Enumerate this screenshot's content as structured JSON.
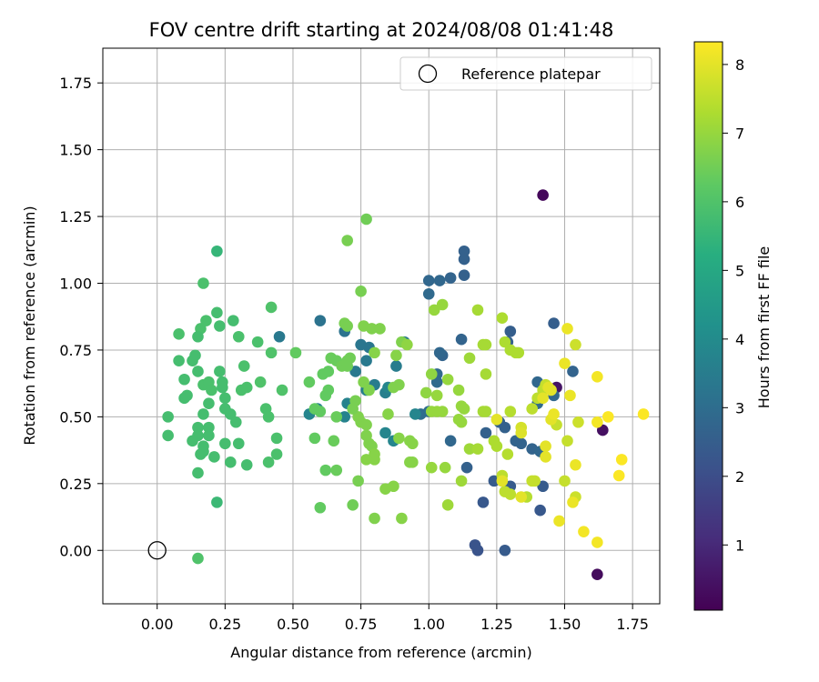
{
  "chart_data": {
    "type": "scatter",
    "title": "FOV centre drift starting at 2024/08/08 01:41:48",
    "xlabel": "Angular distance from reference (arcmin)",
    "ylabel": "Rotation from reference (arcmin)",
    "xlim": [
      -0.2,
      1.85
    ],
    "ylim": [
      -0.2,
      1.88
    ],
    "xticks": [
      0.0,
      0.25,
      0.5,
      0.75,
      1.0,
      1.25,
      1.5,
      1.75
    ],
    "yticks": [
      0.0,
      0.25,
      0.5,
      0.75,
      1.0,
      1.25,
      1.5,
      1.75
    ],
    "xtick_labels": [
      "0.00",
      "0.25",
      "0.50",
      "0.75",
      "1.00",
      "1.25",
      "1.50",
      "1.75"
    ],
    "ytick_labels": [
      "0.00",
      "0.25",
      "0.50",
      "0.75",
      "1.00",
      "1.25",
      "1.50",
      "1.75"
    ],
    "grid": true,
    "legend": {
      "position": "top-right",
      "entries": [
        "Reference platepar"
      ]
    },
    "reference_point": {
      "x": 0.0,
      "y": 0.0,
      "label": "Reference platepar"
    },
    "colorbar": {
      "label": "Hours from first FF file",
      "colormap": "viridis",
      "range": [
        0.05,
        8.33
      ],
      "ticks": [
        1,
        2,
        3,
        4,
        5,
        6,
        7,
        8
      ],
      "tick_labels": [
        "1",
        "2",
        "3",
        "4",
        "5",
        "6",
        "7",
        "8"
      ]
    },
    "points": [
      [
        1.42,
        1.33,
        0.2
      ],
      [
        1.62,
        -0.09,
        0.3
      ],
      [
        1.64,
        0.45,
        0.4
      ],
      [
        1.47,
        0.61,
        0.5
      ],
      [
        1.13,
        1.12,
        2.6
      ],
      [
        1.13,
        1.09,
        2.6
      ],
      [
        1.13,
        1.03,
        2.6
      ],
      [
        1.08,
        1.02,
        2.7
      ],
      [
        1.0,
        1.01,
        2.8
      ],
      [
        1.04,
        1.01,
        2.8
      ],
      [
        1.0,
        0.96,
        2.9
      ],
      [
        1.46,
        0.85,
        2.5
      ],
      [
        1.3,
        0.82,
        2.5
      ],
      [
        1.29,
        0.78,
        2.6
      ],
      [
        1.12,
        0.79,
        2.7
      ],
      [
        1.05,
        0.73,
        2.7
      ],
      [
        1.04,
        0.74,
        2.8
      ],
      [
        1.03,
        0.66,
        2.9
      ],
      [
        1.03,
        0.63,
        2.9
      ],
      [
        1.53,
        0.67,
        2.7
      ],
      [
        1.46,
        0.58,
        2.8
      ],
      [
        1.4,
        0.63,
        2.8
      ],
      [
        1.4,
        0.55,
        2.9
      ],
      [
        1.26,
        0.48,
        2.6
      ],
      [
        1.28,
        0.46,
        2.6
      ],
      [
        1.32,
        0.41,
        2.7
      ],
      [
        1.34,
        0.4,
        2.7
      ],
      [
        1.38,
        0.38,
        2.7
      ],
      [
        1.41,
        0.37,
        2.8
      ],
      [
        1.08,
        0.41,
        2.8
      ],
      [
        1.21,
        0.44,
        2.6
      ],
      [
        0.97,
        0.51,
        3.0
      ],
      [
        1.0,
        0.52,
        3.0
      ],
      [
        1.14,
        0.31,
        2.6
      ],
      [
        1.24,
        0.26,
        2.4
      ],
      [
        1.27,
        0.26,
        2.4
      ],
      [
        1.42,
        0.24,
        2.4
      ],
      [
        1.3,
        0.24,
        2.4
      ],
      [
        1.41,
        0.15,
        2.3
      ],
      [
        1.2,
        0.18,
        2.3
      ],
      [
        1.17,
        0.02,
        2.2
      ],
      [
        1.18,
        0.0,
        2.2
      ],
      [
        1.28,
        0.0,
        2.4
      ],
      [
        0.6,
        0.86,
        3.2
      ],
      [
        0.69,
        0.82,
        3.2
      ],
      [
        0.75,
        0.77,
        3.3
      ],
      [
        0.78,
        0.76,
        3.3
      ],
      [
        0.91,
        0.78,
        3.3
      ],
      [
        0.45,
        0.8,
        3.4
      ],
      [
        0.77,
        0.71,
        3.4
      ],
      [
        0.73,
        0.67,
        3.4
      ],
      [
        0.88,
        0.69,
        3.5
      ],
      [
        0.8,
        0.62,
        3.5
      ],
      [
        0.77,
        0.6,
        3.6
      ],
      [
        0.84,
        0.59,
        3.6
      ],
      [
        0.59,
        0.53,
        3.7
      ],
      [
        0.56,
        0.51,
        3.8
      ],
      [
        0.69,
        0.5,
        3.7
      ],
      [
        0.7,
        0.55,
        3.7
      ],
      [
        0.87,
        0.41,
        3.8
      ],
      [
        0.84,
        0.44,
        3.8
      ],
      [
        0.95,
        0.51,
        3.8
      ],
      [
        0.85,
        0.61,
        3.8
      ],
      [
        0.08,
        0.81,
        5.9
      ],
      [
        0.16,
        0.83,
        5.9
      ],
      [
        0.18,
        0.86,
        5.9
      ],
      [
        0.22,
        0.89,
        5.8
      ],
      [
        0.23,
        0.84,
        5.8
      ],
      [
        0.28,
        0.86,
        5.8
      ],
      [
        0.22,
        1.12,
        5.5
      ],
      [
        0.17,
        1.0,
        5.9
      ],
      [
        0.42,
        0.91,
        6.0
      ],
      [
        0.08,
        0.71,
        5.8
      ],
      [
        0.13,
        0.71,
        5.8
      ],
      [
        0.14,
        0.73,
        5.8
      ],
      [
        0.15,
        0.8,
        5.8
      ],
      [
        0.15,
        0.67,
        5.8
      ],
      [
        0.23,
        0.67,
        5.8
      ],
      [
        0.24,
        0.63,
        5.8
      ],
      [
        0.1,
        0.64,
        5.8
      ],
      [
        0.1,
        0.57,
        5.8
      ],
      [
        0.11,
        0.58,
        5.8
      ],
      [
        0.17,
        0.62,
        5.9
      ],
      [
        0.19,
        0.63,
        5.9
      ],
      [
        0.2,
        0.6,
        5.9
      ],
      [
        0.24,
        0.61,
        5.8
      ],
      [
        0.3,
        0.8,
        5.9
      ],
      [
        0.37,
        0.78,
        5.9
      ],
      [
        0.42,
        0.74,
        6.0
      ],
      [
        0.31,
        0.6,
        5.9
      ],
      [
        0.33,
        0.61,
        5.9
      ],
      [
        0.38,
        0.63,
        6.0
      ],
      [
        0.46,
        0.6,
        6.0
      ],
      [
        0.25,
        0.57,
        5.8
      ],
      [
        0.25,
        0.53,
        5.8
      ],
      [
        0.27,
        0.51,
        5.8
      ],
      [
        0.29,
        0.48,
        5.8
      ],
      [
        0.19,
        0.55,
        5.8
      ],
      [
        0.17,
        0.51,
        5.8
      ],
      [
        0.15,
        0.46,
        5.8
      ],
      [
        0.15,
        0.43,
        5.8
      ],
      [
        0.19,
        0.46,
        5.8
      ],
      [
        0.19,
        0.43,
        5.8
      ],
      [
        0.04,
        0.5,
        5.8
      ],
      [
        0.04,
        0.43,
        5.8
      ],
      [
        0.13,
        0.41,
        5.8
      ],
      [
        0.17,
        0.39,
        5.8
      ],
      [
        0.16,
        0.36,
        5.8
      ],
      [
        0.17,
        0.37,
        5.8
      ],
      [
        0.21,
        0.35,
        5.8
      ],
      [
        0.25,
        0.4,
        5.8
      ],
      [
        0.3,
        0.4,
        5.8
      ],
      [
        0.27,
        0.33,
        5.8
      ],
      [
        0.33,
        0.32,
        5.8
      ],
      [
        0.41,
        0.33,
        5.9
      ],
      [
        0.44,
        0.36,
        5.9
      ],
      [
        0.44,
        0.42,
        5.9
      ],
      [
        0.4,
        0.53,
        5.9
      ],
      [
        0.41,
        0.5,
        5.9
      ],
      [
        0.15,
        0.29,
        5.8
      ],
      [
        0.22,
        0.18,
        5.6
      ],
      [
        0.15,
        -0.03,
        6.0
      ],
      [
        0.32,
        0.69,
        5.9
      ],
      [
        0.51,
        0.74,
        6.3
      ],
      [
        0.56,
        0.63,
        6.3
      ],
      [
        0.61,
        0.66,
        6.3
      ],
      [
        0.63,
        0.67,
        6.3
      ],
      [
        0.64,
        0.72,
        6.4
      ],
      [
        0.66,
        0.71,
        6.4
      ],
      [
        0.68,
        0.69,
        6.5
      ],
      [
        0.7,
        0.71,
        6.5
      ],
      [
        0.7,
        0.69,
        6.5
      ],
      [
        0.71,
        0.72,
        6.5
      ],
      [
        0.62,
        0.58,
        6.3
      ],
      [
        0.66,
        0.5,
        6.4
      ],
      [
        0.58,
        0.53,
        6.3
      ],
      [
        0.6,
        0.52,
        6.3
      ],
      [
        0.63,
        0.6,
        6.3
      ],
      [
        0.69,
        0.85,
        6.6
      ],
      [
        0.7,
        0.84,
        6.6
      ],
      [
        0.75,
        0.97,
        6.6
      ],
      [
        0.77,
        1.24,
        6.5
      ],
      [
        0.7,
        1.16,
        6.6
      ],
      [
        0.76,
        0.84,
        6.7
      ],
      [
        0.79,
        0.83,
        6.7
      ],
      [
        0.82,
        0.83,
        6.7
      ],
      [
        0.8,
        0.74,
        6.8
      ],
      [
        0.76,
        0.63,
        6.7
      ],
      [
        0.78,
        0.6,
        6.7
      ],
      [
        0.87,
        0.61,
        6.7
      ],
      [
        0.89,
        0.62,
        6.7
      ],
      [
        0.9,
        0.78,
        6.7
      ],
      [
        0.88,
        0.73,
        6.8
      ],
      [
        0.74,
        0.5,
        6.7
      ],
      [
        0.75,
        0.48,
        6.7
      ],
      [
        0.77,
        0.47,
        6.7
      ],
      [
        0.72,
        0.53,
        6.6
      ],
      [
        0.73,
        0.56,
        6.6
      ],
      [
        0.77,
        0.43,
        6.7
      ],
      [
        0.78,
        0.4,
        6.7
      ],
      [
        0.79,
        0.39,
        6.7
      ],
      [
        0.8,
        0.36,
        6.8
      ],
      [
        0.8,
        0.34,
        6.8
      ],
      [
        0.77,
        0.34,
        6.8
      ],
      [
        0.85,
        0.51,
        6.8
      ],
      [
        0.89,
        0.42,
        6.8
      ],
      [
        0.93,
        0.41,
        6.8
      ],
      [
        0.94,
        0.4,
        6.8
      ],
      [
        0.58,
        0.42,
        6.3
      ],
      [
        0.65,
        0.41,
        6.4
      ],
      [
        0.62,
        0.3,
        6.3
      ],
      [
        0.66,
        0.3,
        6.4
      ],
      [
        0.6,
        0.16,
        6.3
      ],
      [
        0.72,
        0.17,
        6.5
      ],
      [
        0.74,
        0.26,
        6.6
      ],
      [
        0.8,
        0.12,
        6.7
      ],
      [
        0.84,
        0.23,
        6.8
      ],
      [
        0.87,
        0.24,
        6.8
      ],
      [
        0.9,
        0.12,
        6.8
      ],
      [
        0.93,
        0.33,
        6.8
      ],
      [
        0.94,
        0.33,
        6.8
      ],
      [
        0.92,
        0.77,
        6.9
      ],
      [
        0.99,
        0.59,
        6.9
      ],
      [
        1.01,
        0.66,
        6.9
      ],
      [
        1.02,
        0.9,
        7.0
      ],
      [
        1.05,
        0.92,
        7.0
      ],
      [
        1.03,
        0.58,
        7.0
      ],
      [
        1.07,
        0.64,
        7.0
      ],
      [
        1.01,
        0.52,
        7.0
      ],
      [
        1.03,
        0.52,
        7.0
      ],
      [
        1.05,
        0.52,
        7.0
      ],
      [
        1.11,
        0.6,
        7.0
      ],
      [
        1.12,
        0.54,
        7.0
      ],
      [
        1.13,
        0.53,
        7.0
      ],
      [
        1.12,
        0.48,
        7.0
      ],
      [
        1.11,
        0.49,
        7.0
      ],
      [
        1.15,
        0.72,
        7.1
      ],
      [
        1.18,
        0.9,
        7.2
      ],
      [
        1.2,
        0.77,
        7.2
      ],
      [
        1.21,
        0.77,
        7.2
      ],
      [
        1.21,
        0.66,
        7.2
      ],
      [
        1.2,
        0.52,
        7.2
      ],
      [
        1.21,
        0.52,
        7.2
      ],
      [
        1.15,
        0.38,
        7.1
      ],
      [
        1.18,
        0.38,
        7.2
      ],
      [
        1.12,
        0.26,
        7.1
      ],
      [
        1.01,
        0.31,
        7.0
      ],
      [
        1.06,
        0.31,
        7.0
      ],
      [
        1.07,
        0.17,
        7.1
      ],
      [
        1.24,
        0.41,
        7.3
      ],
      [
        1.25,
        0.39,
        7.3
      ],
      [
        1.27,
        0.87,
        7.3
      ],
      [
        1.28,
        0.78,
        7.3
      ],
      [
        1.3,
        0.75,
        7.3
      ],
      [
        1.32,
        0.74,
        7.3
      ],
      [
        1.33,
        0.74,
        7.3
      ],
      [
        1.3,
        0.52,
        7.4
      ],
      [
        1.29,
        0.36,
        7.4
      ],
      [
        1.27,
        0.28,
        7.5
      ],
      [
        1.28,
        0.22,
        7.5
      ],
      [
        1.3,
        0.21,
        7.5
      ],
      [
        1.36,
        0.2,
        7.4
      ],
      [
        1.38,
        0.53,
        7.5
      ],
      [
        1.4,
        0.57,
        7.5
      ],
      [
        1.42,
        0.6,
        7.5
      ],
      [
        1.43,
        0.62,
        7.6
      ],
      [
        1.47,
        0.47,
        7.6
      ],
      [
        1.51,
        0.41,
        7.6
      ],
      [
        1.5,
        0.26,
        7.6
      ],
      [
        1.54,
        0.2,
        7.7
      ],
      [
        1.55,
        0.48,
        7.7
      ],
      [
        1.54,
        0.77,
        7.7
      ],
      [
        1.39,
        0.26,
        7.6
      ],
      [
        1.38,
        0.26,
        7.6
      ],
      [
        1.34,
        0.46,
        7.8
      ],
      [
        1.34,
        0.44,
        7.9
      ],
      [
        1.34,
        0.2,
        8.0
      ],
      [
        1.25,
        0.49,
        8.0
      ],
      [
        1.27,
        0.26,
        8.0
      ],
      [
        1.42,
        0.57,
        8.0
      ],
      [
        1.43,
        0.39,
        8.0
      ],
      [
        1.43,
        0.35,
        8.0
      ],
      [
        1.44,
        0.61,
        8.0
      ],
      [
        1.45,
        0.6,
        8.0
      ],
      [
        1.45,
        0.49,
        8.0
      ],
      [
        1.46,
        0.51,
        8.1
      ],
      [
        1.48,
        0.11,
        8.1
      ],
      [
        1.5,
        0.7,
        8.1
      ],
      [
        1.51,
        0.83,
        8.1
      ],
      [
        1.52,
        0.58,
        8.1
      ],
      [
        1.53,
        0.18,
        8.1
      ],
      [
        1.54,
        0.32,
        8.1
      ],
      [
        1.57,
        0.07,
        8.2
      ],
      [
        1.62,
        0.03,
        8.2
      ],
      [
        1.62,
        0.65,
        8.2
      ],
      [
        1.62,
        0.48,
        8.2
      ],
      [
        1.66,
        0.5,
        8.3
      ],
      [
        1.7,
        0.28,
        8.3
      ],
      [
        1.71,
        0.34,
        8.3
      ],
      [
        1.79,
        0.51,
        8.3
      ]
    ]
  }
}
